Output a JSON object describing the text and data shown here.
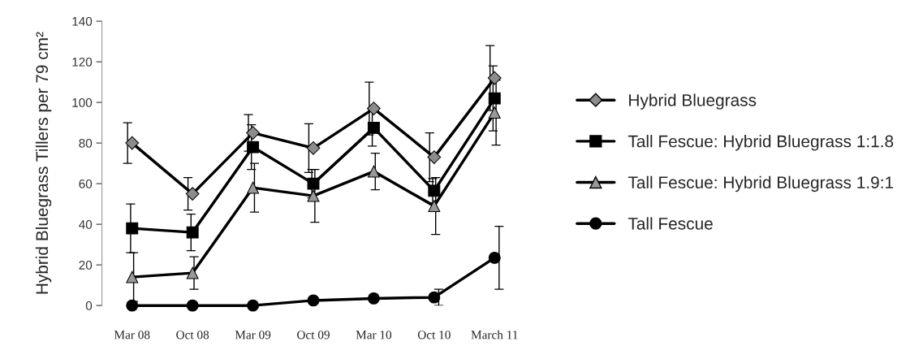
{
  "chart_data": {
    "type": "line",
    "ylabel": "Hybrid Bluegrass Tillers per 79 cm²",
    "categories": [
      "Mar 08",
      "Oct 08",
      "Mar 09",
      "Oct 09",
      "Mar 10",
      "Oct 10",
      "March 11"
    ],
    "ylim": [
      0,
      140
    ],
    "yticks": [
      0,
      20,
      40,
      60,
      80,
      100,
      120,
      140
    ],
    "grid": false,
    "legend": "right",
    "line_style": "solid",
    "series": [
      {
        "name": "Hybrid Bluegrass",
        "color": "#8c8c8c",
        "marker": "diamond",
        "values": [
          80,
          55,
          85,
          77.5,
          97,
          73,
          112
        ],
        "errors": [
          10,
          8,
          9,
          12,
          13,
          12,
          16
        ]
      },
      {
        "name": "Tall Fescue: Hybrid Bluegrass 1:1.8",
        "color": "#000000",
        "marker": "square",
        "values": [
          38,
          36,
          78,
          60,
          87.5,
          56.5,
          102
        ],
        "errors": [
          12,
          9,
          11,
          7,
          9,
          6,
          16
        ]
      },
      {
        "name": "Tall Fescue: Hybrid Bluegrass 1.9:1",
        "color": "#999999",
        "marker": "triangle",
        "values": [
          14,
          16,
          58,
          54,
          66,
          49,
          95
        ],
        "errors": [
          12,
          8,
          12,
          13,
          9,
          14,
          16
        ]
      },
      {
        "name": "Tall Fescue",
        "color": "#000000",
        "marker": "circle",
        "values": [
          0,
          0,
          0,
          2.5,
          3.5,
          4,
          23.5
        ],
        "errors": [
          null,
          null,
          null,
          null,
          null,
          4,
          15.5
        ]
      }
    ]
  }
}
